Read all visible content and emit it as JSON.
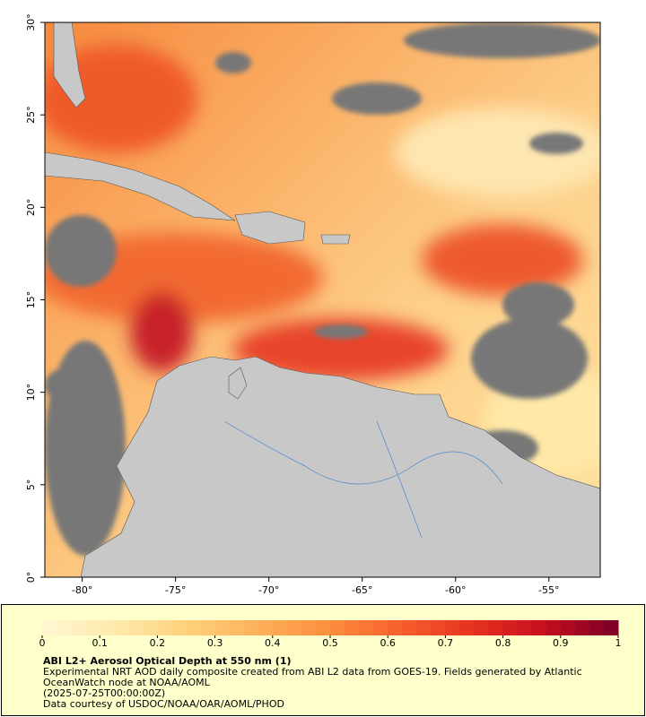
{
  "chart_data": {
    "type": "map",
    "title": "ABI L2+ Aerosol Optical Depth at 550 nm (1)",
    "description": "Experimental NRT AOD daily composite created from ABI L2 data from GOES-19. Fields generated by Atlantic OceanWatch node at NOAA/AOML",
    "date": "(2025-07-25T00:00:00Z)",
    "credit": "Data courtesy of USDOC/NOAA/OAR/AOML/PHOD",
    "xlim": [
      -82,
      -52.25
    ],
    "ylim": [
      0,
      30
    ],
    "xticks": [
      {
        "value": -80,
        "label": "-80°"
      },
      {
        "value": -75,
        "label": "-75°"
      },
      {
        "value": -70,
        "label": "-70°"
      },
      {
        "value": -65,
        "label": "-65°"
      },
      {
        "value": -60,
        "label": "-60°"
      },
      {
        "value": -55,
        "label": "-55°"
      }
    ],
    "yticks": [
      {
        "value": 0,
        "label": "0°"
      },
      {
        "value": 5,
        "label": "5°"
      },
      {
        "value": 10,
        "label": "10°"
      },
      {
        "value": 15,
        "label": "15°"
      },
      {
        "value": 20,
        "label": "20°"
      },
      {
        "value": 25,
        "label": "25°"
      },
      {
        "value": 30,
        "label": "30°"
      }
    ],
    "colorbar": {
      "lim": [
        0,
        1
      ],
      "ticks": [
        0,
        0.1,
        0.2,
        0.3,
        0.4,
        0.5,
        0.6,
        0.7,
        0.8,
        0.9,
        1
      ],
      "colors": [
        "#fff6d0",
        "#fee8a8",
        "#fed07a",
        "#fdb05a",
        "#fc8d3c",
        "#f8602e",
        "#e7331f",
        "#c8101f",
        "#800026"
      ]
    }
  }
}
